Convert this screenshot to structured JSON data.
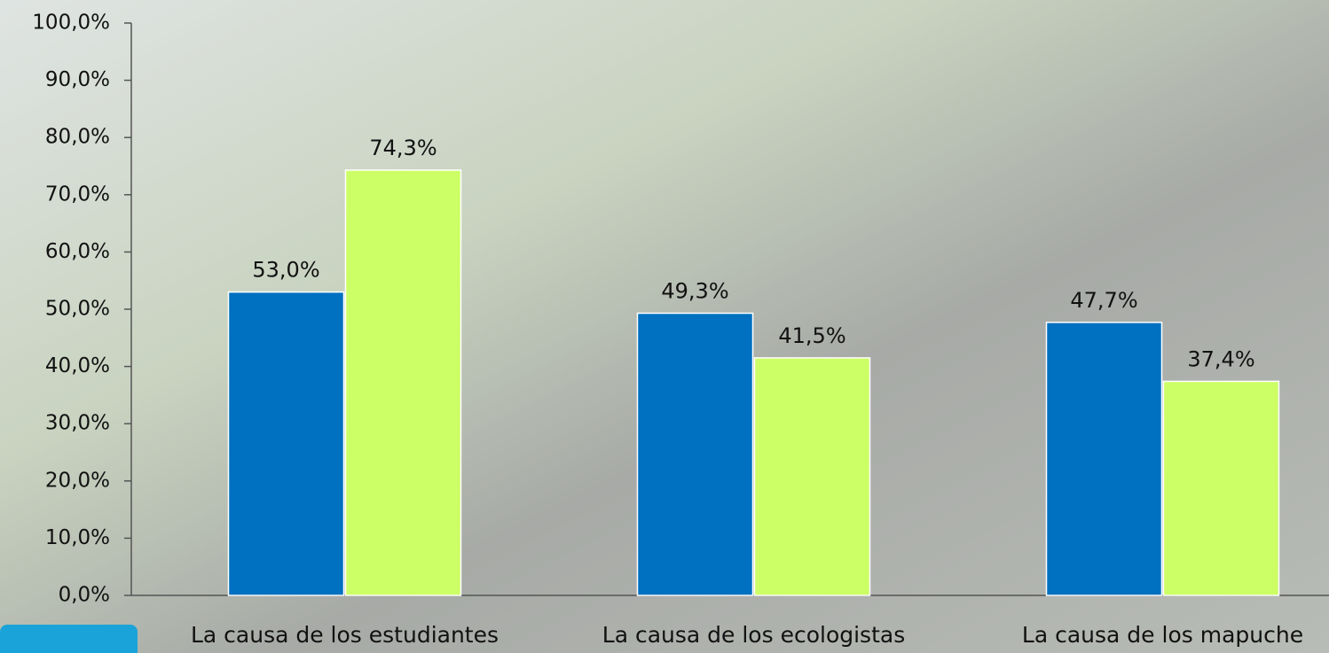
{
  "chart_data": {
    "type": "bar",
    "categories": [
      "La causa de los estudiantes",
      "La causa de los ecologistas",
      "La causa de los mapuche"
    ],
    "series": [
      {
        "color": "#0070c0",
        "values": [
          53.0,
          49.3,
          47.7
        ],
        "value_labels": [
          "53,0%",
          "49,3%",
          "47,7%"
        ]
      },
      {
        "color": "#ccff66",
        "values": [
          74.3,
          41.5,
          37.4
        ],
        "value_labels": [
          "74,3%",
          "41,5%",
          "37,4%"
        ]
      }
    ],
    "ylim": [
      0,
      100
    ],
    "yticks": [
      {
        "value": 0,
        "label": "0,0%"
      },
      {
        "value": 10,
        "label": "10,0%"
      },
      {
        "value": 20,
        "label": "20,0%"
      },
      {
        "value": 30,
        "label": "30,0%"
      },
      {
        "value": 40,
        "label": "40,0%"
      },
      {
        "value": 50,
        "label": "50,0%"
      },
      {
        "value": 60,
        "label": "60,0%"
      },
      {
        "value": 70,
        "label": "70,0%"
      },
      {
        "value": 80,
        "label": "80,0%"
      },
      {
        "value": 90,
        "label": "90,0%"
      },
      {
        "value": 100,
        "label": "100,0%"
      }
    ]
  }
}
